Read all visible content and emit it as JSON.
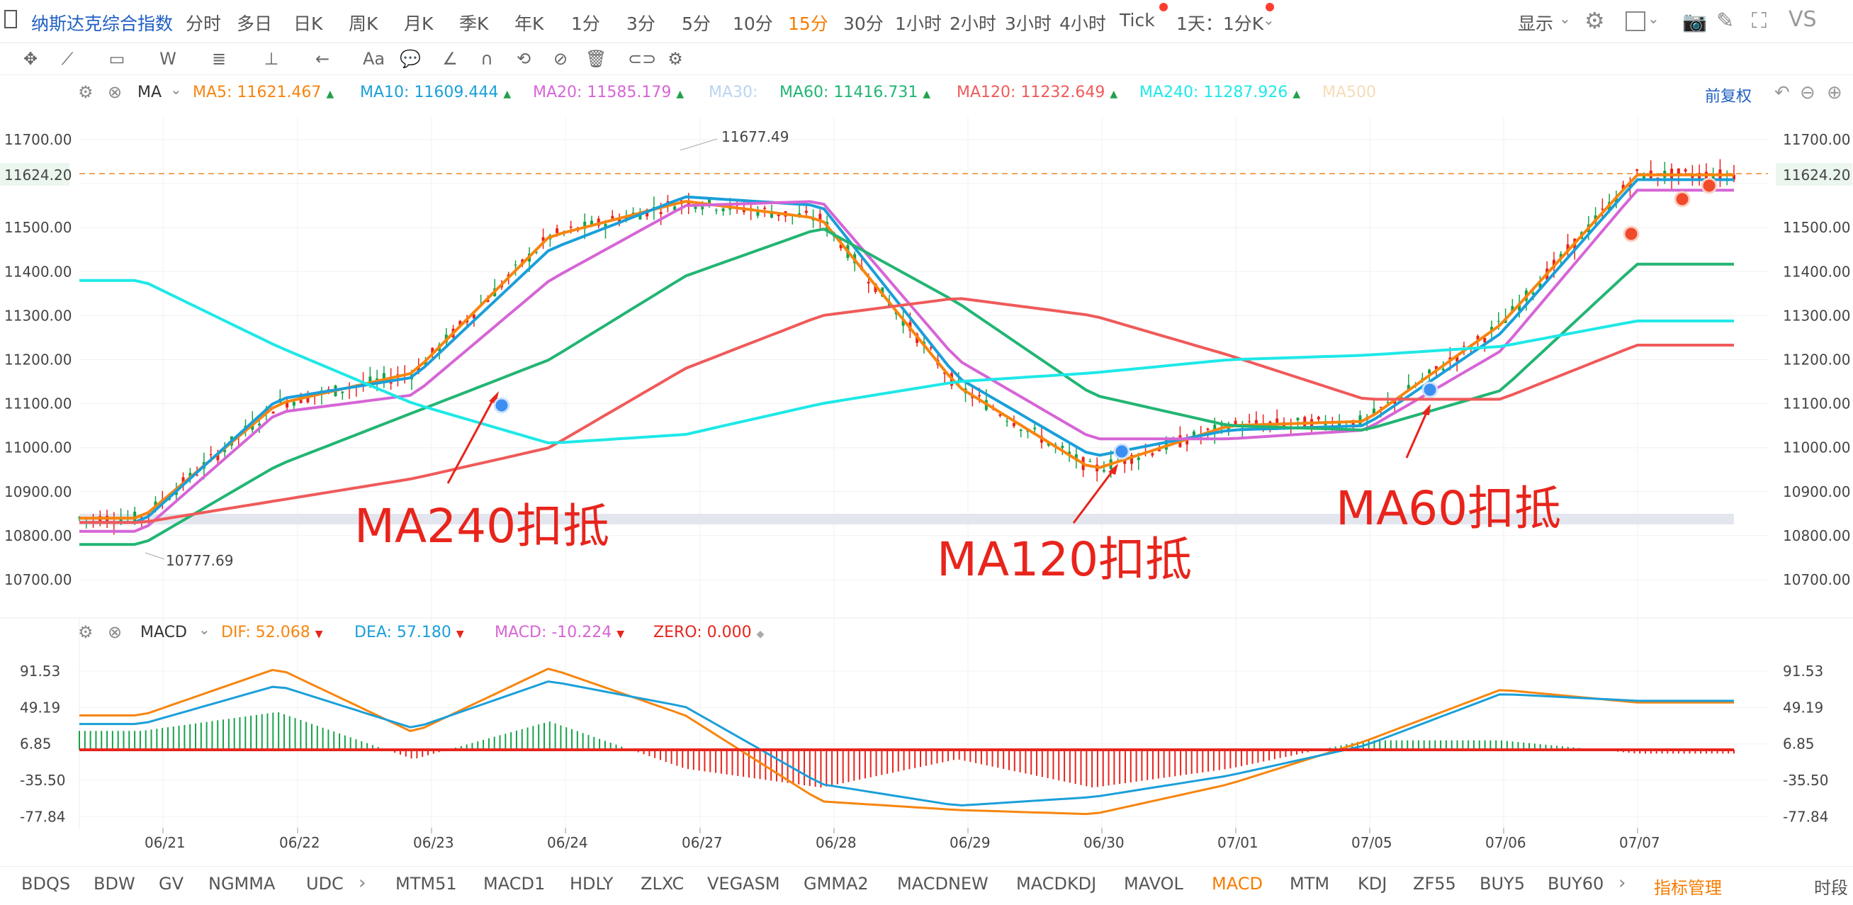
{
  "topbar": {
    "title": "纳斯达克综合指数",
    "periods": [
      "分时",
      "多日",
      "日K",
      "周K",
      "月K",
      "季K",
      "年K",
      "1分",
      "3分",
      "5分",
      "10分",
      "15分",
      "30分",
      "1小时",
      "2小时",
      "3小时",
      "4小时",
      "Tick",
      "1天：1分K"
    ],
    "active_period": "15分",
    "display_label": "显示",
    "vs_label": "VS"
  },
  "legend": {
    "indicator": "MA",
    "items": [
      {
        "label": "MA5:",
        "value": "11621.467",
        "color": "#f7850f",
        "arrow": "▲"
      },
      {
        "label": "MA10:",
        "value": "11609.444",
        "color": "#1a9fd9",
        "arrow": "▲"
      },
      {
        "label": "MA20:",
        "value": "11585.179",
        "color": "#d665d6",
        "arrow": "▲"
      },
      {
        "label": "MA30:",
        "value": "",
        "color": "#b9d4f2",
        "arrow": ""
      },
      {
        "label": "MA60:",
        "value": "11416.731",
        "color": "#22b573",
        "arrow": "▲"
      },
      {
        "label": "MA120:",
        "value": "11232.649",
        "color": "#f05a5a",
        "arrow": "▲"
      },
      {
        "label": "MA240:",
        "value": "11287.926",
        "color": "#1ee8e8",
        "arrow": "▲"
      },
      {
        "label": "MA500",
        "value": "",
        "color": "#f6dcb8",
        "arrow": ""
      }
    ],
    "right_label": "前复权"
  },
  "price_axis": [
    "11700.00",
    "11624.20",
    "11500.00",
    "11400.00",
    "11300.00",
    "11200.00",
    "11100.00",
    "11000.00",
    "10900.00",
    "10800.00",
    "10700.00"
  ],
  "current_price": "11624.20",
  "annotations": {
    "high": "11677.49",
    "low": "10777.69",
    "ma240": "MA240扣抵",
    "ma120": "MA120扣抵",
    "ma60": "MA60扣抵"
  },
  "macd_legend": {
    "name": "MACD",
    "items": [
      {
        "label": "DIF:",
        "value": "52.068",
        "color": "#f7850f",
        "arrow": "▼"
      },
      {
        "label": "DEA:",
        "value": "57.180",
        "color": "#1a9fd9",
        "arrow": "▼"
      },
      {
        "label": "MACD:",
        "value": "-10.224",
        "color": "#d665d6",
        "arrow": "▼"
      },
      {
        "label": "ZERO:",
        "value": "0.000",
        "color": "#e8241c",
        "arrow": "◆"
      }
    ]
  },
  "macd_axis": [
    "91.53",
    "49.19",
    "6.85",
    "-35.50",
    "-77.84"
  ],
  "date_axis": [
    "06/21",
    "06/22",
    "06/23",
    "06/24",
    "06/27",
    "06/28",
    "06/29",
    "06/30",
    "07/01",
    "07/05",
    "07/06",
    "07/07"
  ],
  "bottom_tabs": [
    "BDQS",
    "BDW",
    "GV",
    "NGMMA",
    "UDC",
    "MTM51",
    "MACD1",
    "HDLY",
    "ZLXC",
    "VEGASM",
    "GMMA2",
    "MACDNEW",
    "MACDKDJ",
    "MAVOL",
    "MACD",
    "MTM",
    "KDJ",
    "ZF55",
    "BUY5",
    "BUY60",
    "指标管理",
    "时段"
  ],
  "active_tab": "MACD",
  "chart_data": {
    "type": "line",
    "title": "纳斯达克综合指数 15分",
    "x": [
      "06/21",
      "06/22",
      "06/23",
      "06/24",
      "06/27",
      "06/28",
      "06/29",
      "06/30",
      "07/01",
      "07/05",
      "07/06",
      "07/07"
    ],
    "ylim": [
      10650,
      11760
    ],
    "series": [
      {
        "name": "MA5",
        "values": [
          10840,
          11100,
          11170,
          11480,
          11560,
          11520,
          11140,
          10950,
          11050,
          11060,
          11280,
          11620
        ]
      },
      {
        "name": "MA10",
        "values": [
          10830,
          11110,
          11160,
          11450,
          11570,
          11550,
          11160,
          10980,
          11040,
          11050,
          11260,
          11609
        ]
      },
      {
        "name": "MA20",
        "values": [
          10810,
          11080,
          11120,
          11380,
          11550,
          11560,
          11200,
          11020,
          11020,
          11040,
          11220,
          11585
        ]
      },
      {
        "name": "MA60",
        "values": [
          10780,
          10960,
          11080,
          11200,
          11390,
          11500,
          11330,
          11120,
          11050,
          11040,
          11130,
          11417
        ]
      },
      {
        "name": "MA120",
        "values": [
          10830,
          10880,
          10930,
          11000,
          11180,
          11300,
          11340,
          11300,
          11210,
          11110,
          11110,
          11233
        ]
      },
      {
        "name": "MA240",
        "values": [
          11380,
          11230,
          11100,
          11010,
          11030,
          11100,
          11150,
          11170,
          11200,
          11210,
          11230,
          11288
        ]
      }
    ],
    "macd": {
      "ylim": [
        -95,
        110
      ],
      "dif": [
        40,
        95,
        20,
        95,
        40,
        -60,
        -70,
        -75,
        -40,
        10,
        70,
        55
      ],
      "dea": [
        30,
        75,
        25,
        80,
        50,
        -40,
        -65,
        -55,
        -30,
        5,
        65,
        57
      ]
    }
  }
}
